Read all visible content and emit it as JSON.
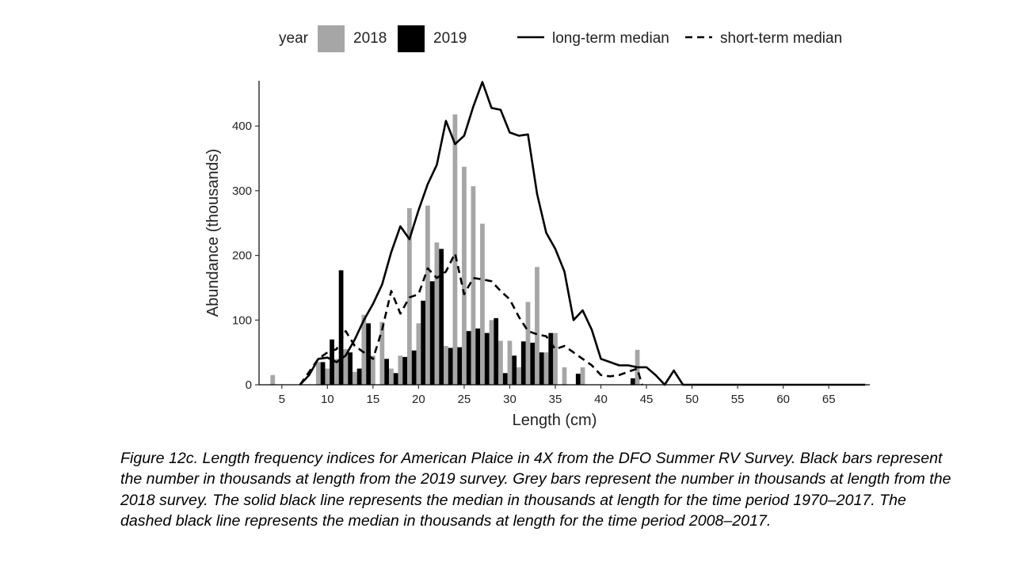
{
  "chart_data": {
    "type": "bar",
    "xlabel": "Length (cm)",
    "ylabel": "Abundance (thousands)",
    "xlim": [
      2.5,
      69.5
    ],
    "ylim": [
      0,
      470
    ],
    "x_ticks": [
      5,
      10,
      15,
      20,
      25,
      30,
      35,
      40,
      45,
      50,
      55,
      60,
      65
    ],
    "y_ticks": [
      0,
      100,
      200,
      300,
      400
    ],
    "grid": false,
    "legend": {
      "position": "top",
      "title": "year",
      "bar_entries": [
        {
          "label": "2018",
          "color": "#a6a6a6"
        },
        {
          "label": "2019",
          "color": "#000000"
        }
      ],
      "line_entries": [
        {
          "label": "long-term median",
          "style": "solid"
        },
        {
          "label": "short-term median",
          "style": "dashed"
        }
      ]
    },
    "bar_series": [
      {
        "name": "2018",
        "color": "#a6a6a6",
        "points": [
          {
            "x": 4,
            "y": 15
          },
          {
            "x": 9,
            "y": 35
          },
          {
            "x": 10,
            "y": 25
          },
          {
            "x": 11,
            "y": 40
          },
          {
            "x": 12,
            "y": 55
          },
          {
            "x": 13,
            "y": 20
          },
          {
            "x": 14,
            "y": 108
          },
          {
            "x": 15,
            "y": 45
          },
          {
            "x": 16,
            "y": 97
          },
          {
            "x": 17,
            "y": 25
          },
          {
            "x": 18,
            "y": 45
          },
          {
            "x": 19,
            "y": 273
          },
          {
            "x": 20,
            "y": 95
          },
          {
            "x": 21,
            "y": 277
          },
          {
            "x": 22,
            "y": 220
          },
          {
            "x": 23,
            "y": 60
          },
          {
            "x": 24,
            "y": 418
          },
          {
            "x": 25,
            "y": 337
          },
          {
            "x": 26,
            "y": 307
          },
          {
            "x": 27,
            "y": 249
          },
          {
            "x": 28,
            "y": 100
          },
          {
            "x": 29,
            "y": 68
          },
          {
            "x": 30,
            "y": 68
          },
          {
            "x": 31,
            "y": 27
          },
          {
            "x": 32,
            "y": 128
          },
          {
            "x": 33,
            "y": 182
          },
          {
            "x": 34,
            "y": 50
          },
          {
            "x": 35,
            "y": 80
          },
          {
            "x": 36,
            "y": 27
          },
          {
            "x": 38,
            "y": 27
          },
          {
            "x": 44,
            "y": 54
          }
        ]
      },
      {
        "name": "2019",
        "color": "#000000",
        "points": [
          {
            "x": 9.5,
            "y": 35
          },
          {
            "x": 10.5,
            "y": 70
          },
          {
            "x": 11.5,
            "y": 177
          },
          {
            "x": 12.5,
            "y": 50
          },
          {
            "x": 13.5,
            "y": 25
          },
          {
            "x": 14.5,
            "y": 95
          },
          {
            "x": 16.5,
            "y": 40
          },
          {
            "x": 17.5,
            "y": 18
          },
          {
            "x": 18.5,
            "y": 43
          },
          {
            "x": 19.5,
            "y": 53
          },
          {
            "x": 20.5,
            "y": 130
          },
          {
            "x": 21.5,
            "y": 160
          },
          {
            "x": 22.5,
            "y": 210
          },
          {
            "x": 23.5,
            "y": 57
          },
          {
            "x": 24.5,
            "y": 58
          },
          {
            "x": 25.5,
            "y": 83
          },
          {
            "x": 26.5,
            "y": 87
          },
          {
            "x": 27.5,
            "y": 80
          },
          {
            "x": 28.5,
            "y": 103
          },
          {
            "x": 29.5,
            "y": 18
          },
          {
            "x": 30.5,
            "y": 45
          },
          {
            "x": 31.5,
            "y": 67
          },
          {
            "x": 32.5,
            "y": 65
          },
          {
            "x": 33.5,
            "y": 50
          },
          {
            "x": 34.5,
            "y": 80
          },
          {
            "x": 37.5,
            "y": 17
          },
          {
            "x": 43.5,
            "y": 10
          }
        ]
      }
    ],
    "line_series": [
      {
        "name": "long-term median",
        "style": "solid",
        "points": [
          [
            7,
            0
          ],
          [
            8,
            15
          ],
          [
            9,
            40
          ],
          [
            10,
            42
          ],
          [
            11,
            35
          ],
          [
            12,
            45
          ],
          [
            13,
            70
          ],
          [
            14,
            100
          ],
          [
            15,
            125
          ],
          [
            16,
            155
          ],
          [
            17,
            205
          ],
          [
            18,
            245
          ],
          [
            19,
            225
          ],
          [
            20,
            270
          ],
          [
            21,
            310
          ],
          [
            22,
            340
          ],
          [
            23,
            408
          ],
          [
            24,
            372
          ],
          [
            25,
            385
          ],
          [
            26,
            430
          ],
          [
            27,
            468
          ],
          [
            28,
            428
          ],
          [
            29,
            425
          ],
          [
            30,
            390
          ],
          [
            31,
            385
          ],
          [
            32,
            387
          ],
          [
            33,
            295
          ],
          [
            34,
            235
          ],
          [
            35,
            210
          ],
          [
            36,
            175
          ],
          [
            37,
            100
          ],
          [
            38,
            115
          ],
          [
            39,
            85
          ],
          [
            40,
            40
          ],
          [
            41,
            35
          ],
          [
            42,
            30
          ],
          [
            43,
            30
          ],
          [
            44,
            27
          ],
          [
            45,
            27
          ],
          [
            46,
            15
          ],
          [
            47,
            0
          ],
          [
            48,
            22
          ],
          [
            49,
            0
          ],
          [
            69,
            0
          ]
        ]
      },
      {
        "name": "short-term median",
        "style": "dashed",
        "points": [
          [
            7,
            0
          ],
          [
            8,
            20
          ],
          [
            9,
            40
          ],
          [
            10,
            50
          ],
          [
            11,
            55
          ],
          [
            12,
            83
          ],
          [
            13,
            60
          ],
          [
            14,
            50
          ],
          [
            15,
            40
          ],
          [
            16,
            85
          ],
          [
            17,
            145
          ],
          [
            18,
            110
          ],
          [
            19,
            135
          ],
          [
            20,
            140
          ],
          [
            21,
            180
          ],
          [
            22,
            165
          ],
          [
            23,
            175
          ],
          [
            24,
            203
          ],
          [
            25,
            140
          ],
          [
            26,
            165
          ],
          [
            27,
            163
          ],
          [
            28,
            160
          ],
          [
            29,
            145
          ],
          [
            30,
            132
          ],
          [
            31,
            105
          ],
          [
            32,
            83
          ],
          [
            33,
            78
          ],
          [
            34,
            75
          ],
          [
            35,
            55
          ],
          [
            36,
            60
          ],
          [
            37,
            50
          ],
          [
            38,
            40
          ],
          [
            39,
            30
          ],
          [
            40,
            15
          ],
          [
            41,
            13
          ],
          [
            42,
            15
          ],
          [
            43,
            20
          ],
          [
            44,
            25
          ],
          [
            44.5,
            0
          ]
        ]
      }
    ]
  },
  "caption": "Figure 12c. Length frequency indices for American Plaice in 4X from the DFO Summer RV Survey. Black bars represent the number in thousands at length from the 2019 survey. Grey bars represent the number in thousands at length from the 2018 survey. The solid black line represents the median in thousands at length for the time period 1970–2017. The dashed black line represents the median in thousands at length for the time period 2008–2017."
}
